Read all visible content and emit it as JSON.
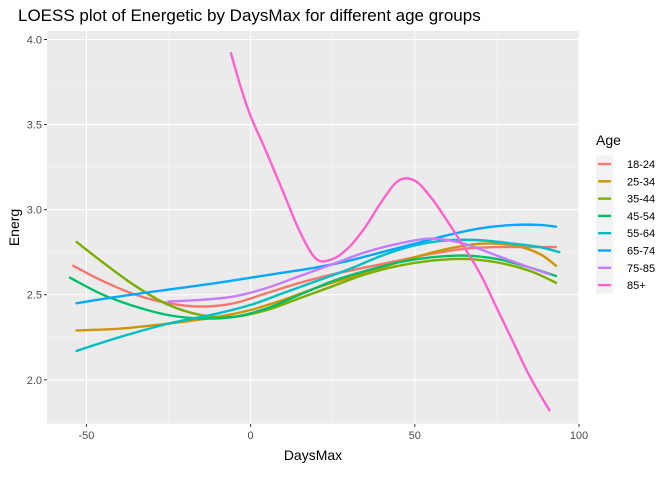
{
  "chart_data": {
    "type": "line",
    "title": "LOESS plot of Energetic by DaysMax for different age groups",
    "xlabel": "DaysMax",
    "ylabel": "Energ",
    "xlim": [
      -62,
      100
    ],
    "ylim": [
      1.74,
      4.05
    ],
    "x_ticks": [
      -50,
      0,
      50,
      100
    ],
    "y_ticks": [
      2.0,
      2.5,
      3.0,
      3.5,
      4.0
    ],
    "x_tick_labels": [
      "-50",
      "0",
      "50",
      "100"
    ],
    "y_tick_labels": [
      "2.0",
      "2.5",
      "3.0",
      "3.5",
      "4.0"
    ],
    "grid": true,
    "legend_title": "Age",
    "legend_position": "right",
    "series": [
      {
        "name": "18-24",
        "color": "#F8766D",
        "points": [
          [
            -54,
            2.67
          ],
          [
            -45,
            2.58
          ],
          [
            -35,
            2.5
          ],
          [
            -25,
            2.45
          ],
          [
            -15,
            2.43
          ],
          [
            -5,
            2.45
          ],
          [
            5,
            2.51
          ],
          [
            15,
            2.57
          ],
          [
            25,
            2.62
          ],
          [
            35,
            2.66
          ],
          [
            45,
            2.7
          ],
          [
            55,
            2.74
          ],
          [
            65,
            2.77
          ],
          [
            75,
            2.78
          ],
          [
            85,
            2.78
          ],
          [
            93,
            2.78
          ]
        ]
      },
      {
        "name": "25-34",
        "color": "#CD9600",
        "points": [
          [
            -53,
            2.29
          ],
          [
            -40,
            2.3
          ],
          [
            -25,
            2.33
          ],
          [
            -10,
            2.37
          ],
          [
            0,
            2.41
          ],
          [
            10,
            2.47
          ],
          [
            20,
            2.54
          ],
          [
            30,
            2.6
          ],
          [
            40,
            2.66
          ],
          [
            50,
            2.72
          ],
          [
            60,
            2.77
          ],
          [
            70,
            2.8
          ],
          [
            80,
            2.79
          ],
          [
            88,
            2.74
          ],
          [
            93,
            2.67
          ]
        ]
      },
      {
        "name": "35-44",
        "color": "#7CAE00",
        "points": [
          [
            -53,
            2.81
          ],
          [
            -45,
            2.69
          ],
          [
            -35,
            2.55
          ],
          [
            -25,
            2.44
          ],
          [
            -15,
            2.38
          ],
          [
            -5,
            2.37
          ],
          [
            5,
            2.41
          ],
          [
            15,
            2.48
          ],
          [
            25,
            2.55
          ],
          [
            35,
            2.62
          ],
          [
            45,
            2.67
          ],
          [
            55,
            2.7
          ],
          [
            65,
            2.71
          ],
          [
            75,
            2.69
          ],
          [
            85,
            2.64
          ],
          [
            93,
            2.57
          ]
        ]
      },
      {
        "name": "45-54",
        "color": "#00BE67",
        "points": [
          [
            -55,
            2.6
          ],
          [
            -45,
            2.5
          ],
          [
            -35,
            2.43
          ],
          [
            -25,
            2.38
          ],
          [
            -15,
            2.36
          ],
          [
            -5,
            2.37
          ],
          [
            5,
            2.42
          ],
          [
            15,
            2.5
          ],
          [
            25,
            2.58
          ],
          [
            35,
            2.64
          ],
          [
            45,
            2.69
          ],
          [
            55,
            2.72
          ],
          [
            65,
            2.73
          ],
          [
            75,
            2.71
          ],
          [
            85,
            2.66
          ],
          [
            93,
            2.61
          ]
        ]
      },
      {
        "name": "55-64",
        "color": "#00BFC4",
        "points": [
          [
            -53,
            2.17
          ],
          [
            -40,
            2.25
          ],
          [
            -25,
            2.33
          ],
          [
            -10,
            2.39
          ],
          [
            0,
            2.44
          ],
          [
            10,
            2.51
          ],
          [
            20,
            2.58
          ],
          [
            30,
            2.65
          ],
          [
            40,
            2.73
          ],
          [
            50,
            2.79
          ],
          [
            60,
            2.82
          ],
          [
            70,
            2.82
          ],
          [
            80,
            2.8
          ],
          [
            88,
            2.78
          ],
          [
            94,
            2.75
          ]
        ]
      },
      {
        "name": "65-74",
        "color": "#00A9FF",
        "points": [
          [
            -53,
            2.45
          ],
          [
            -40,
            2.49
          ],
          [
            -25,
            2.53
          ],
          [
            -10,
            2.57
          ],
          [
            0,
            2.6
          ],
          [
            10,
            2.63
          ],
          [
            20,
            2.66
          ],
          [
            30,
            2.7
          ],
          [
            40,
            2.75
          ],
          [
            50,
            2.8
          ],
          [
            60,
            2.85
          ],
          [
            70,
            2.89
          ],
          [
            80,
            2.91
          ],
          [
            88,
            2.91
          ],
          [
            93,
            2.9
          ]
        ]
      },
      {
        "name": "75-85",
        "color": "#C77CFF",
        "points": [
          [
            -25,
            2.46
          ],
          [
            -15,
            2.47
          ],
          [
            -5,
            2.49
          ],
          [
            5,
            2.54
          ],
          [
            15,
            2.61
          ],
          [
            25,
            2.68
          ],
          [
            35,
            2.75
          ],
          [
            45,
            2.8
          ],
          [
            55,
            2.83
          ],
          [
            65,
            2.8
          ],
          [
            75,
            2.73
          ],
          [
            85,
            2.66
          ],
          [
            91,
            2.62
          ]
        ]
      },
      {
        "name": "85+",
        "color": "#FF61CC",
        "points": [
          [
            -6,
            3.92
          ],
          [
            -3,
            3.72
          ],
          [
            0,
            3.55
          ],
          [
            5,
            3.33
          ],
          [
            10,
            3.1
          ],
          [
            15,
            2.87
          ],
          [
            20,
            2.71
          ],
          [
            25,
            2.71
          ],
          [
            30,
            2.78
          ],
          [
            35,
            2.9
          ],
          [
            40,
            3.05
          ],
          [
            45,
            3.17
          ],
          [
            50,
            3.17
          ],
          [
            55,
            3.07
          ],
          [
            60,
            2.93
          ],
          [
            65,
            2.78
          ],
          [
            70,
            2.62
          ],
          [
            75,
            2.42
          ],
          [
            80,
            2.22
          ],
          [
            85,
            2.02
          ],
          [
            91,
            1.82
          ]
        ]
      }
    ]
  }
}
